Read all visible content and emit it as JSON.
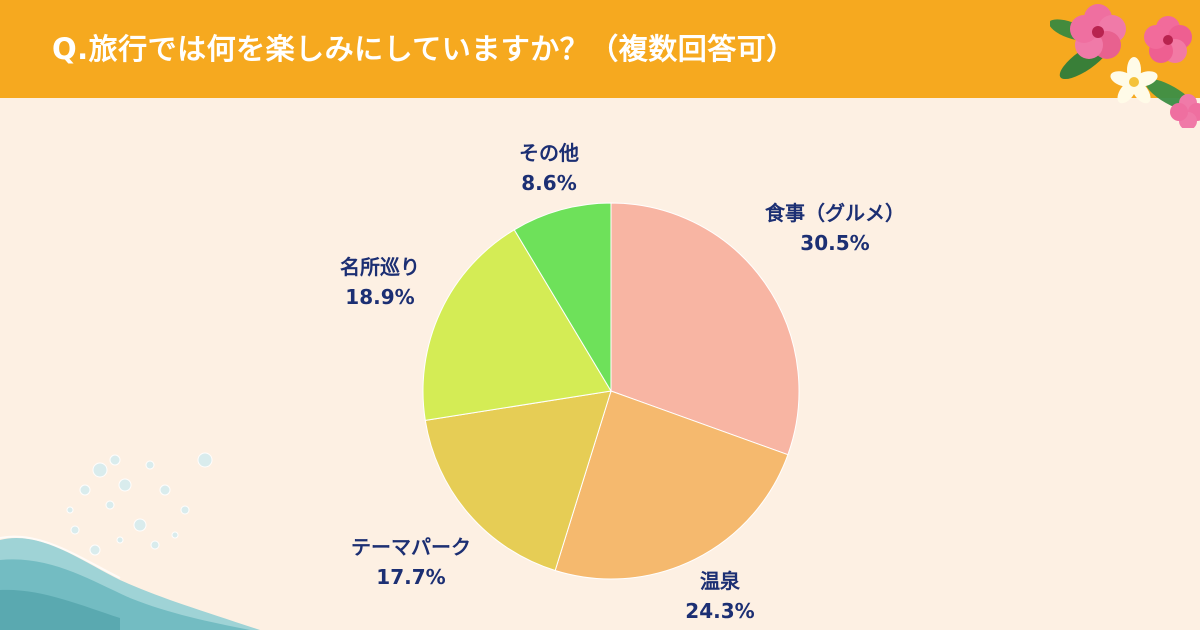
{
  "header": {
    "title": "Q.旅行では何を楽しみにしていますか？（複数回答可）",
    "background": "#f6a91f"
  },
  "decorations": {
    "top_right": "hibiscus-plumeria-flowers",
    "bottom_left": "water-wave-with-bubbles"
  },
  "chart_data": {
    "type": "pie",
    "title": "",
    "start": "12 o'clock, clockwise",
    "slices": [
      {
        "name": "食事（グルメ）",
        "value": 30.5,
        "display": "30.5%",
        "color": "#f8b5a3"
      },
      {
        "name": "温泉",
        "value": 24.3,
        "display": "24.3%",
        "color": "#f5b96e"
      },
      {
        "name": "テーマパーク",
        "value": 17.7,
        "display": "17.7%",
        "color": "#e6cd55"
      },
      {
        "name": "名所巡り",
        "value": 18.9,
        "display": "18.9%",
        "color": "#d4ec55"
      },
      {
        "name": "その他",
        "value": 8.6,
        "display": "8.6%",
        "color": "#6ee15a"
      }
    ],
    "label_color": "#1c2f73"
  }
}
